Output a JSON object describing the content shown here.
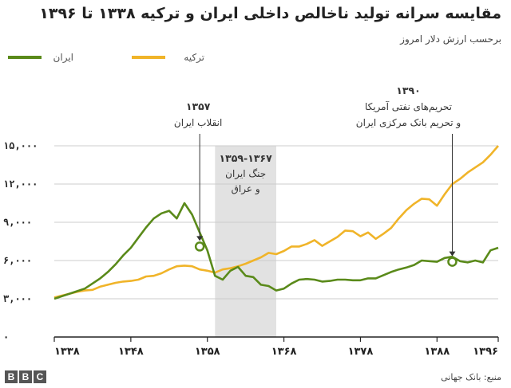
{
  "title": "مقایسه سرانه تولید ناخالص داخلی ایران و ترکیه ۱۳۳۸ تا ۱۳۹۶",
  "subtitle": "برحسب ارزش دلار امروز",
  "source": "منبع: بانک جهانی",
  "logo": [
    "B",
    "B",
    "C"
  ],
  "colors": {
    "iran": "#5a8a1a",
    "turkey": "#f0b429",
    "shade": "#e2e2e2",
    "grid": "#cccccc"
  },
  "chart_data": {
    "type": "line",
    "x_label_prefix": "",
    "ylim": [
      0,
      16000
    ],
    "xlim": [
      1338,
      1396
    ],
    "y_ticks": [
      {
        "value": 0,
        "label": "۰"
      },
      {
        "value": 3000,
        "label": "۳,۰۰۰"
      },
      {
        "value": 6000,
        "label": "۶,۰۰۰"
      },
      {
        "value": 9000,
        "label": "۹,۰۰۰"
      },
      {
        "value": 12000,
        "label": "۱۲,۰۰۰"
      },
      {
        "value": 15000,
        "label": "۱۵,۰۰۰"
      }
    ],
    "x_ticks": [
      {
        "value": 1338,
        "label": "۱۳۳۸"
      },
      {
        "value": 1348,
        "label": "۱۳۴۸"
      },
      {
        "value": 1358,
        "label": "۱۳۵۸"
      },
      {
        "value": 1368,
        "label": "۱۳۶۸"
      },
      {
        "value": 1378,
        "label": "۱۳۷۸"
      },
      {
        "value": 1388,
        "label": "۱۳۸۸"
      },
      {
        "value": 1396,
        "label": "۱۳۹۶"
      }
    ],
    "series": [
      {
        "name": "ایران",
        "key": "iran",
        "x": [
          1338,
          1339,
          1340,
          1341,
          1342,
          1343,
          1344,
          1345,
          1346,
          1347,
          1348,
          1349,
          1350,
          1351,
          1352,
          1353,
          1354,
          1355,
          1356,
          1357,
          1358,
          1359,
          1360,
          1361,
          1362,
          1363,
          1364,
          1365,
          1366,
          1367,
          1368,
          1369,
          1370,
          1371,
          1372,
          1373,
          1374,
          1375,
          1376,
          1377,
          1378,
          1379,
          1380,
          1381,
          1382,
          1383,
          1384,
          1385,
          1386,
          1387,
          1388,
          1389,
          1390,
          1391,
          1392,
          1393,
          1394,
          1395,
          1396
        ],
        "values": [
          3000,
          3200,
          3400,
          3600,
          3800,
          4200,
          4600,
          5100,
          5700,
          6400,
          7000,
          7800,
          8600,
          9300,
          9700,
          9900,
          9300,
          10500,
          9600,
          8200,
          6800,
          4800,
          4500,
          5200,
          5500,
          4800,
          4700,
          4100,
          4000,
          3650,
          3800,
          4200,
          4500,
          4550,
          4500,
          4350,
          4400,
          4500,
          4500,
          4450,
          4450,
          4600,
          4600,
          4850,
          5100,
          5300,
          5450,
          5650,
          6000,
          5950,
          5900,
          6200,
          6300,
          5950,
          5850,
          6000,
          5850,
          6800,
          7000
        ]
      },
      {
        "name": "ترکیه",
        "key": "turkey",
        "x": [
          1338,
          1339,
          1340,
          1341,
          1342,
          1343,
          1344,
          1345,
          1346,
          1347,
          1348,
          1349,
          1350,
          1351,
          1352,
          1353,
          1354,
          1355,
          1356,
          1357,
          1358,
          1359,
          1360,
          1361,
          1362,
          1363,
          1364,
          1365,
          1366,
          1367,
          1368,
          1369,
          1370,
          1371,
          1372,
          1373,
          1374,
          1375,
          1376,
          1377,
          1378,
          1379,
          1380,
          1381,
          1382,
          1383,
          1384,
          1385,
          1386,
          1387,
          1388,
          1389,
          1390,
          1391,
          1392,
          1393,
          1394,
          1395,
          1396
        ],
        "values": [
          3100,
          3250,
          3400,
          3550,
          3650,
          3700,
          3950,
          4100,
          4250,
          4350,
          4400,
          4500,
          4750,
          4800,
          5000,
          5300,
          5550,
          5600,
          5550,
          5300,
          5200,
          5050,
          5300,
          5400,
          5550,
          5750,
          6000,
          6250,
          6600,
          6500,
          6750,
          7100,
          7100,
          7300,
          7600,
          7150,
          7500,
          7850,
          8350,
          8300,
          7900,
          8200,
          7700,
          8100,
          8550,
          9300,
          9950,
          10450,
          10850,
          10800,
          10300,
          11200,
          12000,
          12400,
          12900,
          13300,
          13700,
          14300,
          15000
        ]
      }
    ],
    "shaded_period": {
      "from": 1359,
      "to": 1367,
      "label_lines": [
        "۱۳۵۹-۱۳۶۷",
        "جنگ ایران",
        "و عراق"
      ]
    },
    "annotations": [
      {
        "year": 1357,
        "value": 7100,
        "series": "iran",
        "lines": [
          "۱۳۵۷",
          "انقلاب ایران"
        ]
      },
      {
        "year": 1390,
        "value": 5900,
        "series": "iran",
        "lines": [
          "۱۳۹۰",
          "تحریم‌های نفتی آمریکا",
          "و تحریم بانک مرکزی ایران"
        ]
      }
    ],
    "grid": true,
    "legend": "top"
  }
}
